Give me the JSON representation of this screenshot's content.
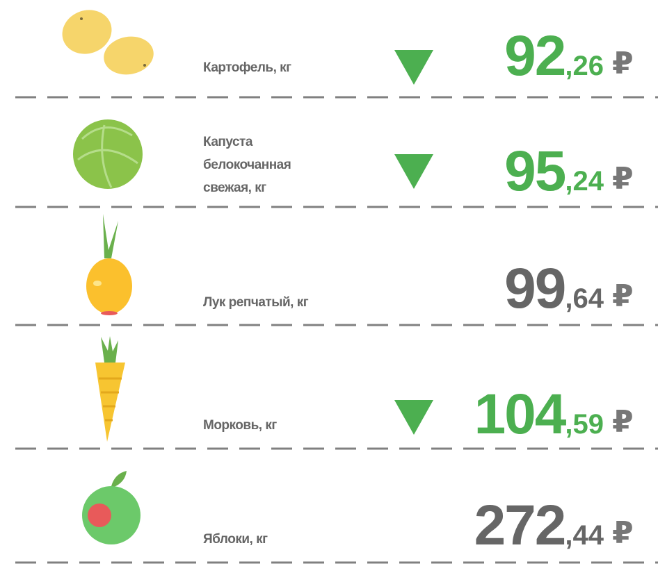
{
  "currency": "₽",
  "items": [
    {
      "name_lines": [
        "Картофель, кг"
      ],
      "price_whole": "92",
      "price_fraction": ",26",
      "trend": "down"
    },
    {
      "name_lines": [
        "Капуста",
        "белокочанная",
        "свежая, кг"
      ],
      "price_whole": "95",
      "price_fraction": ",24",
      "trend": "down"
    },
    {
      "name_lines": [
        "Лук репчатый, кг"
      ],
      "price_whole": "99",
      "price_fraction": ",64"
    },
    {
      "name_lines": [
        "Морковь, кг"
      ],
      "price_whole": "104",
      "price_fraction": ",59",
      "trend": "down"
    },
    {
      "name_lines": [
        "Яблоки, кг"
      ],
      "price_whole": "272",
      "price_fraction": ",44"
    }
  ]
}
